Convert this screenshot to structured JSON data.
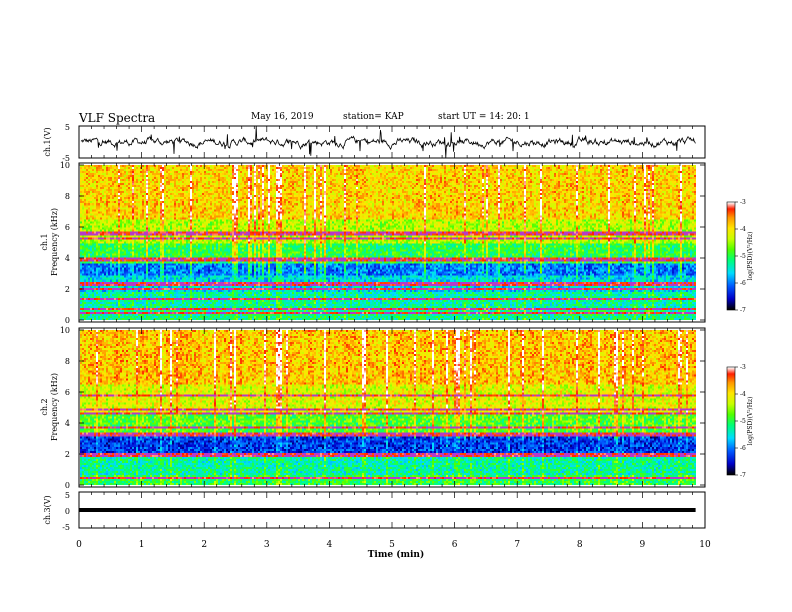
{
  "header": {
    "title": "VLF Spectra",
    "date": "May 16, 2019",
    "station": "station= KAP",
    "start": "start  UT  =   14: 20: 1"
  },
  "colors": {
    "palette": [
      "#000000",
      "#0000ff",
      "#00a0ff",
      "#00ffff",
      "#00ff00",
      "#a0ff00",
      "#ffff00",
      "#ffa000",
      "#ff0000",
      "#ffffff"
    ],
    "trace": "#000000"
  },
  "chart_data": [
    {
      "type": "line",
      "panel": "ch1-waveform",
      "ylabel": "ch.1(V)",
      "ylim": [
        -5,
        5
      ],
      "yticks": [
        "5",
        "-5"
      ],
      "xlim": [
        0,
        9.85
      ],
      "description_values": {
        "typical_range": [
          -2.5,
          2.5
        ],
        "mean": 0
      }
    },
    {
      "type": "heatmap",
      "panel": "ch1-spectrogram",
      "ylabel": "ch.1\nFrequency  (kHz)",
      "ylabel_lines": [
        "ch.1",
        "Frequency  (kHz)"
      ],
      "ylim": [
        0,
        10
      ],
      "yticks": [
        "0",
        "2",
        "4",
        "6",
        "8",
        "10"
      ],
      "xlim": [
        0,
        9.85
      ],
      "colorbar": {
        "label": "log(PSD)(V²/Hz)",
        "range": [
          -7,
          -3
        ],
        "ticks": [
          "-3",
          "-4",
          "-5",
          "-6",
          "-7"
        ]
      },
      "bands": [
        {
          "from": 0,
          "to": 0.6,
          "level": -5.2
        },
        {
          "from": 0.6,
          "to": 1.8,
          "level": -5.3
        },
        {
          "from": 1.8,
          "to": 2.8,
          "level": -5.6
        },
        {
          "from": 2.8,
          "to": 3.6,
          "level": -6.0
        },
        {
          "from": 3.6,
          "to": 5.0,
          "level": -5.0
        },
        {
          "from": 5.0,
          "to": 6.5,
          "level": -4.4
        },
        {
          "from": 6.5,
          "to": 10,
          "level": -3.9
        }
      ],
      "lines_khz": [
        0.4,
        0.65,
        1.3,
        2.0,
        2.3,
        3.9,
        5.3,
        5.6
      ]
    },
    {
      "type": "heatmap",
      "panel": "ch2-spectrogram",
      "ylabel_lines": [
        "ch.2",
        "Frequency  (kHz)"
      ],
      "ylim": [
        0,
        10
      ],
      "yticks": [
        "0",
        "2",
        "4",
        "6",
        "8",
        "10"
      ],
      "xlim": [
        0,
        9.85
      ],
      "colorbar": {
        "label": "log(PSD)(V²/Hz)",
        "range": [
          -7,
          -3
        ],
        "ticks": [
          "-3",
          "-4",
          "-5",
          "-6",
          "-7"
        ]
      },
      "bands": [
        {
          "from": 0,
          "to": 0.6,
          "level": -5.0
        },
        {
          "from": 0.6,
          "to": 1.8,
          "level": -5.3
        },
        {
          "from": 1.8,
          "to": 3.3,
          "level": -6.3
        },
        {
          "from": 3.3,
          "to": 4.5,
          "level": -4.8
        },
        {
          "from": 4.5,
          "to": 6.5,
          "level": -4.2
        },
        {
          "from": 6.5,
          "to": 10,
          "level": -3.8
        }
      ],
      "lines_khz": [
        0.4,
        1.9,
        3.2,
        3.7,
        4.6,
        4.9,
        5.8
      ]
    },
    {
      "type": "line",
      "panel": "ch3-waveform",
      "ylabel": "ch.3(V)",
      "ylim": [
        -5,
        5
      ],
      "yticks": [
        "5",
        "0",
        "-5"
      ],
      "xlim": [
        0,
        9.85
      ],
      "value": 0
    }
  ],
  "xaxis": {
    "label": "Time  (min)",
    "ticks": [
      "0",
      "1",
      "2",
      "3",
      "4",
      "5",
      "6",
      "7",
      "8",
      "9",
      "10"
    ],
    "range": [
      0,
      10
    ]
  }
}
